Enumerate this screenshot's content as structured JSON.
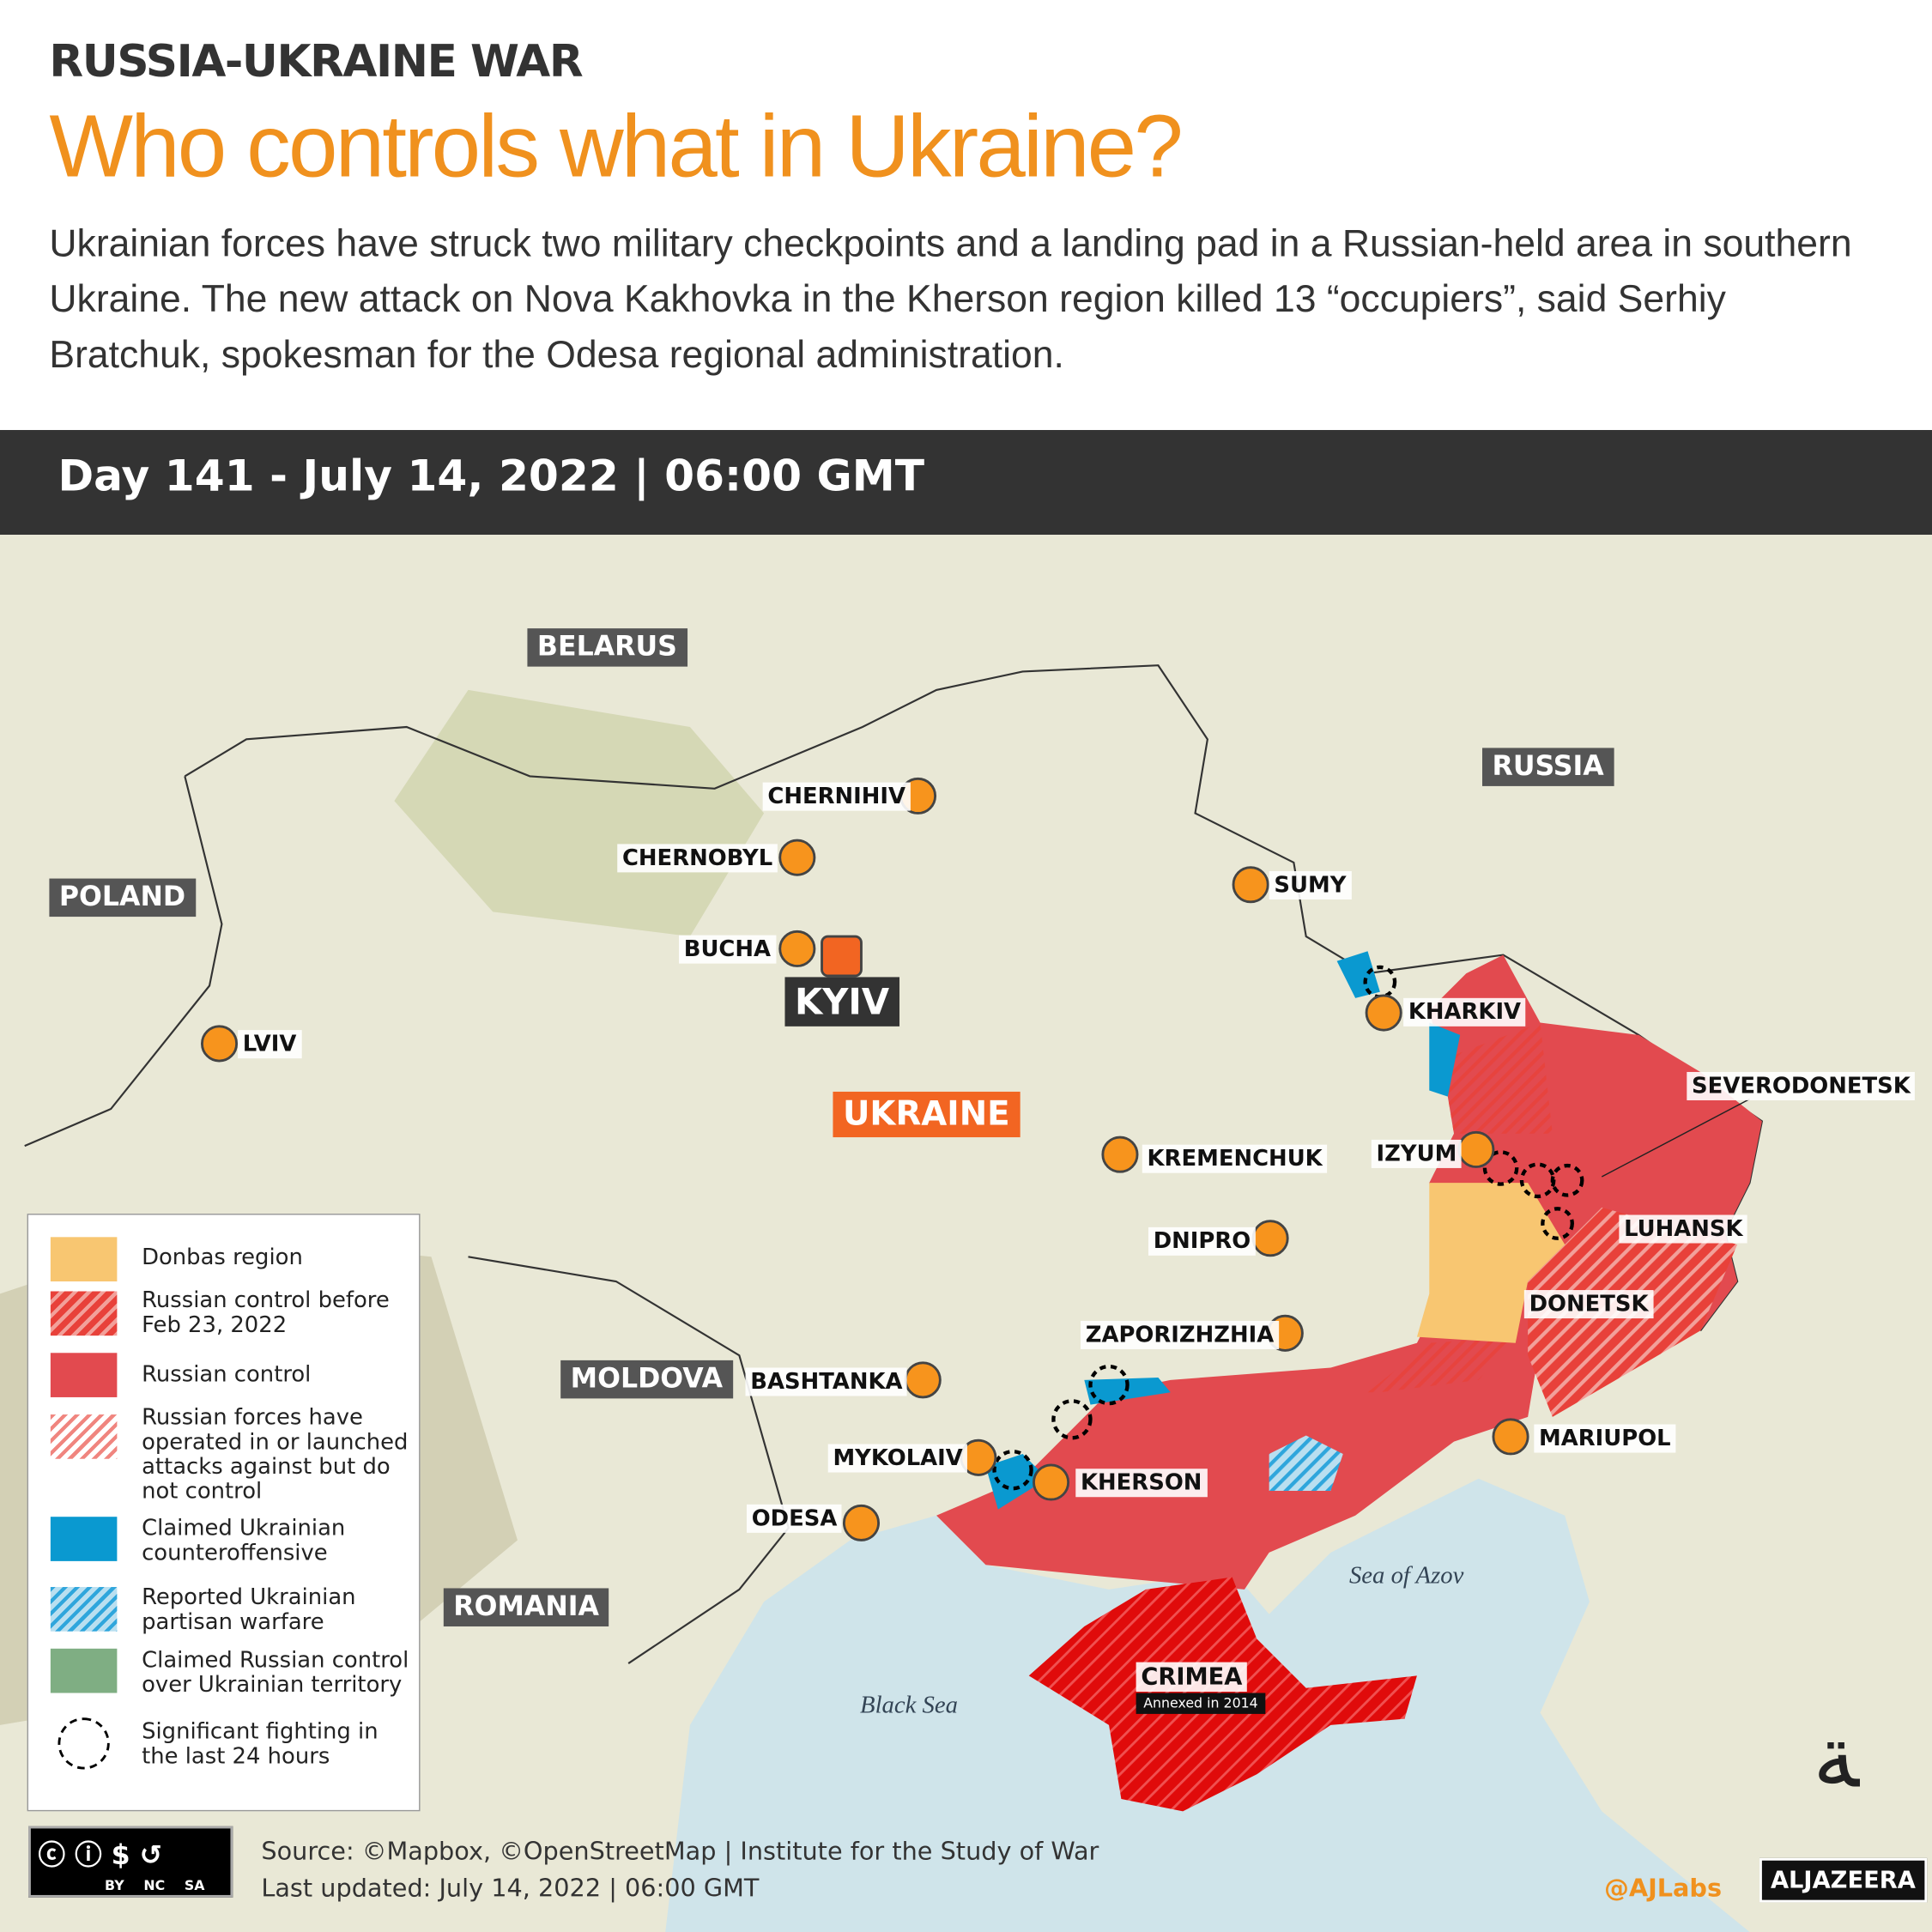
{
  "header": {
    "kicker": "RUSSIA-UKRAINE WAR",
    "title": "Who controls what in Ukraine?",
    "description": "Ukrainian forces have struck two military checkpoints and a landing pad in a Russian-held area in southern Ukraine. The new attack on Nova Kakhovka in the Kherson region killed 13 “occupiers”, said Serhiy Bratchuk, spokesman for the Odesa regional administration."
  },
  "day_bar": "Day 141 - July 14, 2022 | 06:00 GMT",
  "countries": {
    "belarus": "BELARUS",
    "russia": "RUSSIA",
    "poland": "POLAND",
    "moldova": "MOLDOVA",
    "romania": "ROMANIA",
    "ukraine": "UKRAINE"
  },
  "cities": {
    "chernihiv": "CHERNIHIV",
    "chernobyl": "CHERNOBYL",
    "sumy": "SUMY",
    "bucha": "BUCHA",
    "kyiv": "KYIV",
    "lviv": "LVIV",
    "kharkiv": "KHARKIV",
    "severodonetsk": "SEVERODONETSK",
    "kremenchuk": "KREMENCHUK",
    "izyum": "IZYUM",
    "luhansk": "LUHANSK",
    "dnipro": "DNIPRO",
    "donetsk": "DONETSK",
    "zaporizhzhia": "ZAPORIZHZHIA",
    "bashtanka": "BASHTANKA",
    "mykolaiv": "MYKOLAIV",
    "kherson": "KHERSON",
    "mariupol": "MARIUPOL",
    "odesa": "ODESA"
  },
  "crimea": {
    "name": "CRIMEA",
    "note": "Annexed in 2014"
  },
  "seas": {
    "azov": "Sea of Azov",
    "black": "Black Sea"
  },
  "legend": [
    {
      "label": "Donbas region",
      "color": "#f8c671"
    },
    {
      "label": "Russian control before Feb 23, 2022",
      "color": "#e8413a"
    },
    {
      "label": "Russian control",
      "color": "#e24a4f"
    },
    {
      "label": "Russian forces have operated in or launched attacks against but do not control",
      "color": "#f0857f"
    },
    {
      "label": "Claimed Ukrainian counteroffensive",
      "color": "#0a99d0"
    },
    {
      "label": "Reported Ukrainian partisan warfare",
      "color": "#2fa6dc"
    },
    {
      "label": "Claimed Russian control over Ukrainian territory",
      "color": "#7fae83"
    },
    {
      "label": "Significant fighting in the last 24 hours",
      "color": "#000000"
    }
  ],
  "footer": {
    "source": "Source: ©Mapbox, ©OpenStreetMap  |  Institute for the Study of War",
    "updated": "Last updated: July 14, 2022  |  06:00 GMT",
    "handle": "@AJLabs",
    "brand": "ALJAZEERA",
    "license": "BY NC SA"
  },
  "colors": {
    "accent": "#f0911e",
    "ukraine_label": "#f26522",
    "city_dot": "#f7941d",
    "sea": "#cfe4ea",
    "land": "#e9e8d6"
  }
}
